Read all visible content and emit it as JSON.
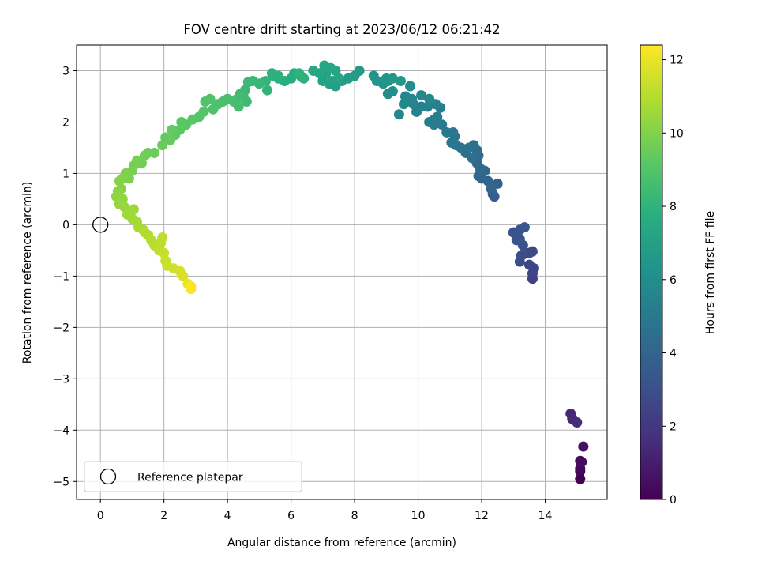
{
  "chart_data": {
    "type": "scatter",
    "title": "FOV centre drift starting at 2023/06/12 06:21:42",
    "xlabel": "Angular distance from reference (arcmin)",
    "ylabel": "Rotation from reference (arcmin)",
    "xlim": [
      -0.75,
      15.95
    ],
    "ylim": [
      -5.35,
      3.5
    ],
    "xticks": [
      "0",
      "2",
      "4",
      "6",
      "8",
      "10",
      "12",
      "14"
    ],
    "yticks": [
      "−5",
      "−4",
      "−3",
      "−2",
      "−1",
      "0",
      "1",
      "2",
      "3"
    ],
    "xtick_values": [
      0,
      2,
      4,
      6,
      8,
      10,
      12,
      14
    ],
    "ytick_values": [
      -5,
      -4,
      -3,
      -2,
      -1,
      0,
      1,
      2,
      3
    ],
    "grid": true,
    "legend": {
      "entries": [
        "Reference platepar"
      ],
      "placement": "lower-left"
    },
    "reference_point": {
      "name": "Reference platepar",
      "x": 0,
      "y": 0
    },
    "colorbar": {
      "label": "Hours from first FF file",
      "range": [
        0,
        12.4
      ],
      "ticks": [
        "0",
        "2",
        "4",
        "6",
        "8",
        "10",
        "12"
      ],
      "tick_values": [
        0,
        2,
        4,
        6,
        8,
        10,
        12
      ],
      "colormap": "viridis"
    },
    "points_xy_hours": [
      [
        15.1,
        -4.95,
        0.0
      ],
      [
        15.1,
        -4.8,
        0.1
      ],
      [
        15.1,
        -4.75,
        0.2
      ],
      [
        15.1,
        -4.6,
        0.3
      ],
      [
        15.15,
        -4.62,
        0.35
      ],
      [
        15.2,
        -4.32,
        0.5
      ],
      [
        14.8,
        -3.68,
        1.3
      ],
      [
        14.85,
        -3.78,
        1.4
      ],
      [
        15.0,
        -3.85,
        1.5
      ],
      [
        13.6,
        -1.05,
        2.4
      ],
      [
        13.6,
        -0.95,
        2.5
      ],
      [
        13.65,
        -0.85,
        2.55
      ],
      [
        13.5,
        -0.78,
        2.6
      ],
      [
        13.5,
        -0.55,
        2.7
      ],
      [
        13.6,
        -0.52,
        2.75
      ],
      [
        13.3,
        -0.58,
        2.85
      ],
      [
        13.2,
        -0.72,
        2.9
      ],
      [
        13.25,
        -0.6,
        2.95
      ],
      [
        13.3,
        -0.4,
        3.0
      ],
      [
        13.2,
        -0.28,
        3.05
      ],
      [
        13.1,
        -0.2,
        3.1
      ],
      [
        13.0,
        -0.15,
        3.15
      ],
      [
        13.1,
        -0.3,
        3.2
      ],
      [
        13.2,
        -0.1,
        3.25
      ],
      [
        13.35,
        -0.05,
        3.3
      ],
      [
        12.4,
        0.55,
        3.7
      ],
      [
        12.35,
        0.6,
        3.8
      ],
      [
        12.5,
        0.8,
        3.85
      ],
      [
        12.2,
        0.85,
        3.9
      ],
      [
        12.3,
        0.7,
        3.95
      ],
      [
        12.0,
        0.9,
        4.0
      ],
      [
        11.9,
        0.95,
        4.05
      ],
      [
        12.1,
        1.05,
        4.1
      ],
      [
        11.95,
        1.1,
        4.15
      ],
      [
        11.85,
        1.2,
        4.2
      ],
      [
        11.9,
        1.35,
        4.3
      ],
      [
        11.85,
        1.45,
        4.35
      ],
      [
        11.75,
        1.55,
        4.45
      ],
      [
        11.5,
        1.4,
        4.5
      ],
      [
        11.7,
        1.3,
        4.55
      ],
      [
        11.6,
        1.5,
        4.6
      ],
      [
        11.35,
        1.5,
        4.7
      ],
      [
        11.2,
        1.55,
        4.75
      ],
      [
        11.05,
        1.6,
        4.8
      ],
      [
        11.15,
        1.72,
        4.85
      ],
      [
        11.1,
        1.8,
        4.9
      ],
      [
        10.9,
        1.8,
        4.95
      ],
      [
        10.75,
        1.95,
        5.0
      ],
      [
        10.5,
        2.05,
        5.1
      ],
      [
        10.5,
        1.95,
        5.15
      ],
      [
        10.35,
        2.0,
        5.2
      ],
      [
        10.6,
        2.1,
        5.25
      ],
      [
        10.7,
        2.28,
        5.3
      ],
      [
        10.55,
        2.35,
        5.35
      ],
      [
        10.3,
        2.3,
        5.4
      ],
      [
        10.1,
        2.3,
        5.45
      ],
      [
        9.95,
        2.2,
        5.5
      ],
      [
        9.85,
        2.35,
        5.55
      ],
      [
        9.8,
        2.45,
        5.6
      ],
      [
        9.6,
        2.5,
        5.65
      ],
      [
        9.4,
        2.15,
        5.7
      ],
      [
        10.35,
        2.45,
        5.75
      ],
      [
        10.1,
        2.52,
        5.8
      ],
      [
        9.55,
        2.35,
        5.85
      ],
      [
        9.75,
        2.7,
        5.95
      ],
      [
        9.05,
        2.55,
        6.1
      ],
      [
        9.2,
        2.6,
        6.15
      ],
      [
        9.05,
        2.8,
        6.2
      ],
      [
        8.9,
        2.75,
        6.3
      ],
      [
        8.7,
        2.8,
        6.35
      ],
      [
        8.6,
        2.9,
        6.4
      ],
      [
        9.0,
        2.85,
        6.45
      ],
      [
        9.45,
        2.8,
        6.5
      ],
      [
        9.2,
        2.85,
        6.55
      ],
      [
        8.15,
        3.0,
        6.7
      ],
      [
        8.0,
        2.9,
        6.8
      ],
      [
        7.8,
        2.85,
        6.85
      ],
      [
        7.6,
        2.8,
        6.9
      ],
      [
        7.4,
        2.7,
        6.95
      ],
      [
        7.2,
        2.75,
        7.0
      ],
      [
        7.0,
        2.8,
        7.05
      ],
      [
        7.1,
        2.95,
        7.1
      ],
      [
        7.3,
        2.8,
        7.15
      ],
      [
        7.5,
        2.85,
        7.2
      ],
      [
        7.4,
        3.0,
        7.25
      ],
      [
        7.25,
        3.05,
        7.3
      ],
      [
        7.05,
        3.1,
        7.35
      ],
      [
        6.9,
        2.95,
        7.4
      ],
      [
        6.7,
        3.0,
        7.45
      ],
      [
        6.3,
        2.9,
        7.55
      ],
      [
        6.1,
        2.95,
        7.6
      ],
      [
        6.0,
        2.85,
        7.65
      ],
      [
        5.8,
        2.8,
        7.7
      ],
      [
        5.6,
        2.85,
        7.75
      ],
      [
        5.45,
        2.9,
        7.8
      ],
      [
        5.4,
        2.95,
        7.85
      ],
      [
        5.6,
        2.9,
        7.9
      ],
      [
        6.4,
        2.85,
        7.95
      ],
      [
        6.25,
        2.95,
        8.0
      ],
      [
        5.25,
        2.62,
        8.05
      ],
      [
        5.2,
        2.8,
        8.1
      ],
      [
        5.0,
        2.75,
        8.2
      ],
      [
        4.8,
        2.8,
        8.25
      ],
      [
        4.65,
        2.78,
        8.3
      ],
      [
        4.55,
        2.62,
        8.35
      ],
      [
        4.5,
        2.5,
        8.4
      ],
      [
        4.6,
        2.4,
        8.45
      ],
      [
        4.4,
        2.55,
        8.5
      ],
      [
        4.3,
        2.45,
        8.55
      ],
      [
        4.35,
        2.3,
        8.6
      ],
      [
        4.2,
        2.4,
        8.65
      ],
      [
        4.0,
        2.45,
        8.7
      ],
      [
        3.85,
        2.4,
        8.75
      ],
      [
        3.7,
        2.35,
        8.8
      ],
      [
        3.55,
        2.25,
        8.85
      ],
      [
        3.45,
        2.45,
        8.9
      ],
      [
        3.3,
        2.4,
        8.95
      ],
      [
        3.25,
        2.2,
        9.0
      ],
      [
        3.1,
        2.1,
        9.05
      ],
      [
        2.9,
        2.05,
        9.1
      ],
      [
        2.7,
        1.95,
        9.15
      ],
      [
        2.55,
        2.0,
        9.2
      ],
      [
        2.5,
        1.85,
        9.25
      ],
      [
        2.35,
        1.75,
        9.3
      ],
      [
        2.25,
        1.85,
        9.35
      ],
      [
        2.05,
        1.7,
        9.4
      ],
      [
        2.2,
        1.65,
        9.45
      ],
      [
        1.95,
        1.55,
        9.5
      ],
      [
        1.7,
        1.4,
        9.55
      ],
      [
        1.5,
        1.4,
        9.6
      ],
      [
        1.4,
        1.35,
        9.65
      ],
      [
        1.3,
        1.2,
        9.7
      ],
      [
        1.15,
        1.25,
        9.75
      ],
      [
        1.05,
        1.15,
        9.8
      ],
      [
        1.0,
        1.05,
        9.85
      ],
      [
        0.9,
        0.9,
        9.9
      ],
      [
        0.8,
        1.0,
        9.95
      ],
      [
        0.7,
        0.9,
        10.0
      ],
      [
        0.6,
        0.85,
        10.05
      ],
      [
        0.65,
        0.7,
        10.1
      ],
      [
        0.55,
        0.65,
        10.2
      ],
      [
        0.5,
        0.55,
        10.25
      ],
      [
        0.7,
        0.5,
        10.3
      ],
      [
        0.6,
        0.4,
        10.35
      ],
      [
        0.75,
        0.35,
        10.4
      ],
      [
        0.85,
        0.2,
        10.5
      ],
      [
        1.05,
        0.3,
        10.55
      ],
      [
        1.0,
        0.12,
        10.6
      ],
      [
        1.15,
        0.05,
        10.7
      ],
      [
        1.2,
        -0.05,
        10.75
      ],
      [
        1.35,
        -0.1,
        10.8
      ],
      [
        1.5,
        -0.2,
        10.9
      ],
      [
        1.4,
        -0.15,
        10.95
      ],
      [
        1.6,
        -0.3,
        11.0
      ],
      [
        1.7,
        -0.4,
        11.05
      ],
      [
        1.9,
        -0.35,
        11.1
      ],
      [
        1.95,
        -0.25,
        11.15
      ],
      [
        1.85,
        -0.5,
        11.2
      ],
      [
        2.0,
        -0.55,
        11.3
      ],
      [
        2.05,
        -0.7,
        11.35
      ],
      [
        2.1,
        -0.8,
        11.4
      ],
      [
        2.3,
        -0.85,
        11.5
      ],
      [
        2.5,
        -0.9,
        11.6
      ],
      [
        2.6,
        -1.0,
        11.7
      ],
      [
        2.75,
        -1.15,
        12.0
      ],
      [
        2.85,
        -1.25,
        12.2
      ],
      [
        2.85,
        -1.2,
        12.3
      ]
    ]
  }
}
